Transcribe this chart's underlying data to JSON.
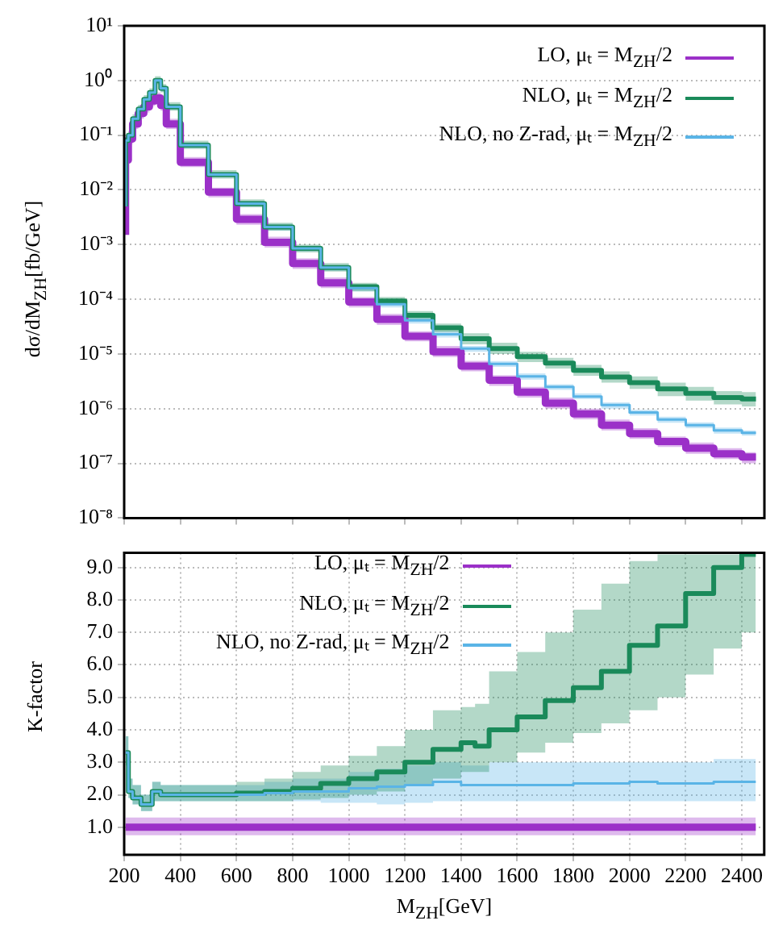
{
  "chart_data": [
    {
      "type": "step",
      "ylabel": "dσ/dM$_{ZH}$[fb/GeV]",
      "log": "y",
      "grid": "y",
      "legend": "top right",
      "tick_labels": "y",
      "xlim": [
        200,
        2480
      ],
      "xticks": [
        {
          "value": 200,
          "label": null
        },
        {
          "value": 400,
          "label": null
        },
        {
          "value": 600,
          "label": null
        },
        {
          "value": 800,
          "label": null
        },
        {
          "value": 1000,
          "label": null
        },
        {
          "value": 1200,
          "label": null
        },
        {
          "value": 1400,
          "label": null
        },
        {
          "value": 1600,
          "label": null
        },
        {
          "value": 1800,
          "label": null
        },
        {
          "value": 2000,
          "label": null
        },
        {
          "value": 2200,
          "label": null
        },
        {
          "value": 2400,
          "label": null
        }
      ],
      "ylim": [
        1e-08,
        10
      ],
      "yticks": [
        {
          "value": 10,
          "label": "10¹"
        },
        {
          "value": 1,
          "label": "10⁰"
        },
        {
          "value": 0.1,
          "label": "10⁻¹"
        },
        {
          "value": 0.01,
          "label": "10⁻²"
        },
        {
          "value": 0.001,
          "label": "10⁻³"
        },
        {
          "value": 0.0001,
          "label": "10⁻⁴"
        },
        {
          "value": 1e-05,
          "label": "10⁻⁵"
        },
        {
          "value": 1e-06,
          "label": "10⁻⁶"
        },
        {
          "value": 1e-07,
          "label": "10⁻⁷"
        },
        {
          "value": 1e-08,
          "label": "10⁻⁸"
        }
      ],
      "x": [
        205,
        215,
        230,
        250,
        270,
        290,
        310,
        330,
        350,
        400,
        500,
        600,
        700,
        800,
        900,
        1000,
        1100,
        1200,
        1300,
        1400,
        1500,
        1600,
        1700,
        1800,
        1900,
        2000,
        2100,
        2200,
        2300,
        2400,
        2450
      ],
      "series": [
        {
          "name": "LO, μₜ = M$_{ZH}$/2",
          "color": "#9b30c8",
          "values": [
            0.0015,
            0.035,
            0.085,
            0.16,
            0.25,
            0.33,
            0.42,
            0.48,
            0.35,
            0.16,
            0.032,
            0.0091,
            0.0029,
            0.0011,
            0.00045,
            0.0002,
            8.9e-05,
            4.3e-05,
            2.1e-05,
            1.1e-05,
            6e-06,
            3.3e-06,
            2e-06,
            1.26e-06,
            8e-07,
            5e-07,
            3.5e-07,
            2.5e-07,
            1.9e-07,
            1.5e-07,
            1.3e-07
          ],
          "lower": [
            0.0012,
            0.028,
            0.068,
            0.13,
            0.2,
            0.26,
            0.34,
            0.38,
            0.28,
            0.13,
            0.026,
            0.0073,
            0.0023,
            0.00088,
            0.00036,
            0.00016,
            7.1e-05,
            3.4e-05,
            1.7e-05,
            8.8e-06,
            4.8e-06,
            2.6e-06,
            1.6e-06,
            1e-06,
            6.4e-07,
            4e-07,
            2.8e-07,
            2e-07,
            1.5e-07,
            1.2e-07,
            1e-07
          ],
          "upper": [
            0.0019,
            0.044,
            0.11,
            0.2,
            0.31,
            0.41,
            0.53,
            0.6,
            0.44,
            0.2,
            0.04,
            0.011,
            0.0036,
            0.0014,
            0.00056,
            0.00025,
            0.00011,
            5.4e-05,
            2.6e-05,
            1.4e-05,
            7.5e-06,
            4.1e-06,
            2.5e-06,
            1.6e-06,
            1e-06,
            6.3e-07,
            4.4e-07,
            3.1e-07,
            2.4e-07,
            1.9e-07,
            1.6e-07
          ]
        },
        {
          "name": "NLO, μₜ = M$_{ZH}$/2",
          "color": "#1a8a5a",
          "values": [
            0.005,
            0.08,
            0.1,
            0.2,
            0.3,
            0.45,
            0.6,
            1.0,
            0.72,
            0.33,
            0.066,
            0.019,
            0.0056,
            0.0021,
            0.00085,
            0.00038,
            0.00017,
            9.3e-05,
            5.1e-05,
            3e-05,
            1.9e-05,
            1.26e-05,
            8.9e-06,
            6.8e-06,
            5e-06,
            3.8e-06,
            3e-06,
            2.3e-06,
            1.9e-06,
            1.6e-06,
            1.5e-06
          ],
          "lower": [
            0.0043,
            0.068,
            0.085,
            0.17,
            0.26,
            0.38,
            0.51,
            0.85,
            0.61,
            0.28,
            0.056,
            0.016,
            0.0048,
            0.0018,
            0.00072,
            0.00032,
            0.00014,
            7.9e-05,
            4.3e-05,
            2.5e-05,
            1.5e-05,
            1e-05,
            7.1e-06,
            5.4e-06,
            4e-06,
            3e-06,
            2.3e-06,
            1.7e-06,
            1.4e-06,
            1.2e-06,
            1.1e-06
          ],
          "upper": [
            0.006,
            0.096,
            0.12,
            0.24,
            0.36,
            0.54,
            0.72,
            1.2,
            0.86,
            0.4,
            0.079,
            0.023,
            0.0067,
            0.0025,
            0.001,
            0.00046,
            0.0002,
            0.00011,
            6.1e-05,
            3.6e-05,
            2.4e-05,
            1.6e-05,
            1.1e-05,
            8.5e-06,
            6.3e-06,
            4.8e-06,
            3.9e-06,
            3e-06,
            2.5e-06,
            2.1e-06,
            2e-06
          ]
        },
        {
          "name": "NLO, no Z-rad, μₜ = M$_{ZH}$/2",
          "color": "#5ab4e6",
          "values": [
            0.005,
            0.08,
            0.1,
            0.2,
            0.3,
            0.45,
            0.6,
            1.0,
            0.72,
            0.33,
            0.066,
            0.019,
            0.0056,
            0.0021,
            0.00085,
            0.00038,
            0.00016,
            8.1e-05,
            4.1e-05,
            2.3e-05,
            1.26e-05,
            6.6e-06,
            3.9e-06,
            2.5e-06,
            1.66e-06,
            1.17e-06,
            8.5e-07,
            6.3e-07,
            5e-07,
            4e-07,
            3.6e-07
          ],
          "lower": [
            0.0044,
            0.07,
            0.088,
            0.18,
            0.26,
            0.4,
            0.53,
            0.88,
            0.63,
            0.29,
            0.058,
            0.017,
            0.0049,
            0.0018,
            0.00075,
            0.00033,
            0.00014,
            7.1e-05,
            3.6e-05,
            2e-05,
            1.1e-05,
            5.8e-06,
            3.4e-06,
            2.2e-06,
            1.5e-06,
            1e-06,
            7.5e-07,
            5.5e-07,
            4.4e-07,
            3.5e-07,
            3.2e-07
          ],
          "upper": [
            0.0056,
            0.09,
            0.11,
            0.22,
            0.34,
            0.5,
            0.67,
            1.1,
            0.81,
            0.37,
            0.074,
            0.021,
            0.0063,
            0.0024,
            0.00095,
            0.00043,
            0.00018,
            9.1e-05,
            4.6e-05,
            2.6e-05,
            1.4e-05,
            7.4e-06,
            4.4e-06,
            2.8e-06,
            1.9e-06,
            1.3e-06,
            9.5e-07,
            7.1e-07,
            5.6e-07,
            4.5e-07,
            4e-07
          ]
        }
      ]
    },
    {
      "type": "step",
      "xlabel": "M$_{ZH}$[GeV]",
      "ylabel": "K-factor",
      "grid": true,
      "legend": "top",
      "xlim": [
        200,
        2480
      ],
      "xticks": [
        200,
        400,
        600,
        800,
        1000,
        1200,
        1400,
        1600,
        1800,
        2000,
        2200,
        2400
      ],
      "ylim": [
        0.15,
        9.45
      ],
      "yticks": [
        {
          "value": 1,
          "label": "1.0"
        },
        {
          "value": 2,
          "label": "2.0"
        },
        {
          "value": 3,
          "label": "3.0"
        },
        {
          "value": 4,
          "label": "4.0"
        },
        {
          "value": 5,
          "label": "5.0"
        },
        {
          "value": 6,
          "label": "6.0"
        },
        {
          "value": 7,
          "label": "7.0"
        },
        {
          "value": 8,
          "label": "8.0"
        },
        {
          "value": 9,
          "label": "9.0"
        }
      ],
      "x": [
        205,
        215,
        230,
        260,
        300,
        330,
        400,
        500,
        600,
        700,
        800,
        900,
        1000,
        1100,
        1200,
        1300,
        1400,
        1450,
        1500,
        1600,
        1700,
        1800,
        1900,
        2000,
        2100,
        2200,
        2300,
        2400,
        2450
      ],
      "series": [
        {
          "name": "LO, μₜ = M$_{ZH}$/2",
          "color": "#9b30c8",
          "values": [
            1,
            1,
            1,
            1,
            1,
            1,
            1,
            1,
            1,
            1,
            1,
            1,
            1,
            1,
            1,
            1,
            1,
            1,
            1,
            1,
            1,
            1,
            1,
            1,
            1,
            1,
            1,
            1,
            1
          ],
          "lower": [
            0.75,
            0.75,
            0.75,
            0.75,
            0.75,
            0.75,
            0.75,
            0.75,
            0.75,
            0.75,
            0.75,
            0.75,
            0.75,
            0.75,
            0.75,
            0.75,
            0.75,
            0.75,
            0.75,
            0.75,
            0.75,
            0.75,
            0.75,
            0.75,
            0.75,
            0.75,
            0.75,
            0.75,
            0.75
          ],
          "upper": [
            1.3,
            1.3,
            1.3,
            1.3,
            1.3,
            1.3,
            1.3,
            1.3,
            1.3,
            1.3,
            1.3,
            1.3,
            1.3,
            1.3,
            1.3,
            1.3,
            1.3,
            1.3,
            1.3,
            1.3,
            1.3,
            1.3,
            1.3,
            1.3,
            1.3,
            1.3,
            1.3,
            1.3,
            1.3
          ]
        },
        {
          "name": "NLO, μₜ = M$_{ZH}$/2",
          "color": "#1a8a5a",
          "values": [
            3.3,
            3.3,
            2.1,
            1.9,
            1.7,
            2.1,
            2.0,
            2.0,
            2.0,
            2.05,
            2.1,
            2.2,
            2.35,
            2.5,
            2.7,
            3.0,
            3.4,
            3.6,
            3.5,
            4.0,
            4.4,
            4.9,
            5.3,
            5.8,
            6.6,
            7.2,
            8.2,
            9.0,
            9.4
          ],
          "lower": [
            2.9,
            2.9,
            1.9,
            1.7,
            1.5,
            1.8,
            1.8,
            1.8,
            1.8,
            1.8,
            1.8,
            1.85,
            1.9,
            2.0,
            2.1,
            2.3,
            2.5,
            2.7,
            2.7,
            3.0,
            3.3,
            3.6,
            3.9,
            4.2,
            4.6,
            5.0,
            5.7,
            6.5,
            7.0
          ],
          "upper": [
            4.0,
            3.8,
            2.5,
            2.3,
            2.0,
            2.4,
            2.3,
            2.3,
            2.3,
            2.4,
            2.5,
            2.7,
            2.9,
            3.2,
            3.5,
            4.0,
            4.6,
            4.7,
            4.8,
            5.8,
            6.4,
            7.0,
            7.7,
            8.5,
            9.2,
            9.4,
            9.4,
            9.4,
            9.4
          ]
        },
        {
          "name": "NLO, no Z-rad, μₜ = M$_{ZH}$/2",
          "color": "#5ab4e6",
          "values": [
            3.3,
            3.3,
            2.1,
            1.9,
            1.7,
            2.1,
            2.0,
            2.0,
            2.0,
            2.0,
            2.05,
            2.1,
            2.1,
            2.2,
            2.25,
            2.3,
            2.4,
            2.3,
            2.3,
            2.3,
            2.3,
            2.3,
            2.35,
            2.35,
            2.4,
            2.35,
            2.35,
            2.4,
            2.4
          ],
          "lower": [
            2.9,
            2.9,
            1.9,
            1.7,
            1.5,
            1.8,
            1.8,
            1.8,
            1.8,
            1.8,
            1.8,
            1.8,
            1.75,
            1.75,
            1.7,
            1.75,
            1.8,
            1.8,
            1.8,
            1.8,
            1.8,
            1.8,
            1.8,
            1.8,
            1.8,
            1.8,
            1.8,
            1.8,
            1.8
          ],
          "upper": [
            4.0,
            3.8,
            2.5,
            2.3,
            2.0,
            2.4,
            2.3,
            2.3,
            2.3,
            2.3,
            2.4,
            2.5,
            2.5,
            2.7,
            2.8,
            2.9,
            3.0,
            2.9,
            2.9,
            3.0,
            3.0,
            3.0,
            3.0,
            3.0,
            3.0,
            3.0,
            3.0,
            3.1,
            3.1
          ]
        }
      ]
    }
  ]
}
